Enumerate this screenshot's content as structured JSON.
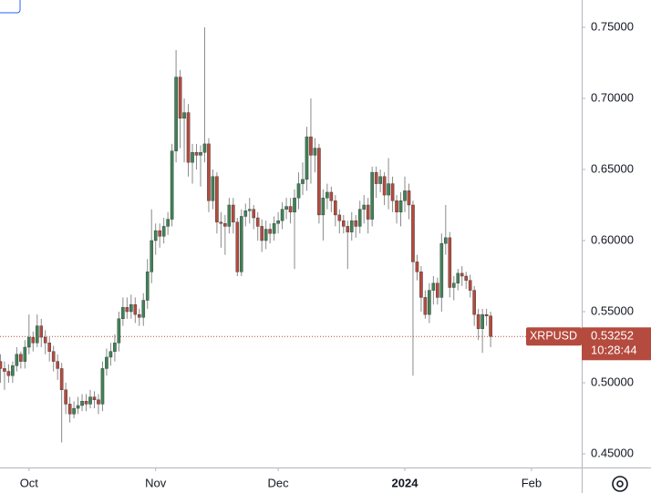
{
  "chart_data": {
    "type": "candlestick",
    "symbol": "XRPUSD",
    "last_price_label": "0.53252",
    "countdown": "10:28:44",
    "up_color": "#3f8257",
    "down_color": "#b54a3e",
    "wick_color": "#8a8a8a",
    "grid": false,
    "xlim": [
      -0.1,
      142.3
    ],
    "xticks": [
      {
        "value": 7,
        "label": "Oct"
      },
      {
        "value": 38,
        "label": "Nov"
      },
      {
        "value": 68,
        "label": "Dec"
      },
      {
        "value": 99,
        "label": "2024"
      },
      {
        "value": 130,
        "label": "Feb"
      }
    ],
    "ylim": [
      0.4404,
      0.7692
    ],
    "yticks": [
      {
        "value": 0.45,
        "label": "0.45000"
      },
      {
        "value": 0.5,
        "label": "0.50000"
      },
      {
        "value": 0.55,
        "label": "0.55000"
      },
      {
        "value": 0.6,
        "label": "0.60000"
      },
      {
        "value": 0.65,
        "label": "0.65000"
      },
      {
        "value": 0.7,
        "label": "0.70000"
      },
      {
        "value": 0.75,
        "label": "0.75000"
      }
    ],
    "open": [
      0.515,
      0.51,
      0.508,
      0.505,
      0.512,
      0.52,
      0.515,
      0.525,
      0.532,
      0.528,
      0.54,
      0.532,
      0.528,
      0.522,
      0.515,
      0.51,
      0.495,
      0.485,
      0.478,
      0.482,
      0.484,
      0.487,
      0.485,
      0.49,
      0.488,
      0.485,
      0.51,
      0.518,
      0.522,
      0.528,
      0.545,
      0.553,
      0.55,
      0.555,
      0.548,
      0.546,
      0.558,
      0.578,
      0.6,
      0.607,
      0.603,
      0.61,
      0.615,
      0.663,
      0.715,
      0.686,
      0.69,
      0.655,
      0.662,
      0.66,
      0.662,
      0.668,
      0.628,
      0.645,
      0.613,
      0.612,
      0.61,
      0.625,
      0.613,
      0.578,
      0.617,
      0.621,
      0.622,
      0.616,
      0.61,
      0.6,
      0.608,
      0.605,
      0.612,
      0.614,
      0.622,
      0.624,
      0.62,
      0.63,
      0.64,
      0.643,
      0.673,
      0.66,
      0.665,
      0.618,
      0.63,
      0.634,
      0.628,
      0.618,
      0.614,
      0.61,
      0.606,
      0.614,
      0.61,
      0.622,
      0.625,
      0.615,
      0.648,
      0.64,
      0.645,
      0.632,
      0.64,
      0.628,
      0.62,
      0.628,
      0.635,
      0.625,
      0.585,
      0.578,
      0.56,
      0.548,
      0.565,
      0.57,
      0.56,
      0.598,
      0.602,
      0.567,
      0.57,
      0.577,
      0.575,
      0.572,
      0.565,
      0.548,
      0.538,
      0.548,
      0.547
    ],
    "high": [
      0.52,
      0.515,
      0.513,
      0.515,
      0.525,
      0.522,
      0.53,
      0.548,
      0.536,
      0.548,
      0.545,
      0.537,
      0.532,
      0.526,
      0.52,
      0.514,
      0.5,
      0.49,
      0.487,
      0.49,
      0.492,
      0.492,
      0.495,
      0.494,
      0.492,
      0.515,
      0.524,
      0.528,
      0.534,
      0.55,
      0.56,
      0.56,
      0.562,
      0.56,
      0.552,
      0.563,
      0.587,
      0.622,
      0.612,
      0.612,
      0.616,
      0.62,
      0.668,
      0.734,
      0.72,
      0.7,
      0.696,
      0.668,
      0.668,
      0.667,
      0.75,
      0.672,
      0.65,
      0.648,
      0.62,
      0.618,
      0.63,
      0.63,
      0.616,
      0.622,
      0.626,
      0.63,
      0.625,
      0.62,
      0.615,
      0.614,
      0.612,
      0.617,
      0.62,
      0.627,
      0.63,
      0.63,
      0.636,
      0.648,
      0.655,
      0.68,
      0.7,
      0.672,
      0.668,
      0.636,
      0.64,
      0.638,
      0.632,
      0.622,
      0.618,
      0.614,
      0.62,
      0.618,
      0.628,
      0.632,
      0.63,
      0.652,
      0.652,
      0.65,
      0.648,
      0.658,
      0.645,
      0.632,
      0.634,
      0.645,
      0.64,
      0.628,
      0.59,
      0.582,
      0.565,
      0.57,
      0.575,
      0.574,
      0.605,
      0.625,
      0.606,
      0.575,
      0.58,
      0.582,
      0.578,
      0.576,
      0.568,
      0.552,
      0.552,
      0.552,
      0.55
    ],
    "low": [
      0.5,
      0.495,
      0.5,
      0.5,
      0.508,
      0.51,
      0.51,
      0.52,
      0.522,
      0.525,
      0.525,
      0.52,
      0.515,
      0.508,
      0.502,
      0.458,
      0.478,
      0.472,
      0.475,
      0.478,
      0.48,
      0.48,
      0.482,
      0.482,
      0.478,
      0.48,
      0.505,
      0.512,
      0.515,
      0.522,
      0.54,
      0.545,
      0.545,
      0.542,
      0.54,
      0.54,
      0.552,
      0.57,
      0.59,
      0.595,
      0.598,
      0.604,
      0.61,
      0.655,
      0.665,
      0.655,
      0.645,
      0.64,
      0.65,
      0.638,
      0.655,
      0.62,
      0.622,
      0.605,
      0.595,
      0.59,
      0.605,
      0.605,
      0.575,
      0.575,
      0.61,
      0.612,
      0.608,
      0.6,
      0.592,
      0.594,
      0.598,
      0.6,
      0.605,
      0.608,
      0.615,
      0.612,
      0.58,
      0.622,
      0.632,
      0.635,
      0.64,
      0.648,
      0.612,
      0.6,
      0.622,
      0.62,
      0.61,
      0.605,
      0.605,
      0.58,
      0.6,
      0.602,
      0.605,
      0.612,
      0.605,
      0.61,
      0.63,
      0.634,
      0.625,
      0.622,
      0.62,
      0.612,
      0.61,
      0.62,
      0.615,
      0.505,
      0.572,
      0.55,
      0.545,
      0.542,
      0.555,
      0.555,
      0.55,
      0.59,
      0.56,
      0.558,
      0.565,
      0.568,
      0.566,
      0.56,
      0.54,
      0.53,
      0.521,
      0.54,
      0.525
    ],
    "close": [
      0.51,
      0.508,
      0.505,
      0.512,
      0.52,
      0.515,
      0.525,
      0.532,
      0.528,
      0.54,
      0.532,
      0.528,
      0.522,
      0.515,
      0.51,
      0.495,
      0.485,
      0.478,
      0.482,
      0.484,
      0.487,
      0.485,
      0.49,
      0.488,
      0.485,
      0.51,
      0.518,
      0.522,
      0.528,
      0.545,
      0.553,
      0.55,
      0.555,
      0.548,
      0.546,
      0.558,
      0.578,
      0.6,
      0.607,
      0.603,
      0.61,
      0.615,
      0.663,
      0.715,
      0.686,
      0.69,
      0.655,
      0.662,
      0.66,
      0.662,
      0.668,
      0.628,
      0.645,
      0.613,
      0.612,
      0.61,
      0.625,
      0.613,
      0.578,
      0.617,
      0.621,
      0.622,
      0.616,
      0.61,
      0.6,
      0.608,
      0.605,
      0.612,
      0.614,
      0.622,
      0.624,
      0.62,
      0.63,
      0.64,
      0.643,
      0.673,
      0.66,
      0.665,
      0.618,
      0.63,
      0.634,
      0.628,
      0.618,
      0.614,
      0.61,
      0.606,
      0.614,
      0.61,
      0.622,
      0.625,
      0.615,
      0.648,
      0.64,
      0.645,
      0.632,
      0.64,
      0.628,
      0.62,
      0.628,
      0.635,
      0.625,
      0.585,
      0.578,
      0.56,
      0.548,
      0.565,
      0.57,
      0.56,
      0.598,
      0.602,
      0.567,
      0.57,
      0.577,
      0.575,
      0.572,
      0.565,
      0.548,
      0.538,
      0.548,
      0.547,
      0.53252
    ]
  }
}
